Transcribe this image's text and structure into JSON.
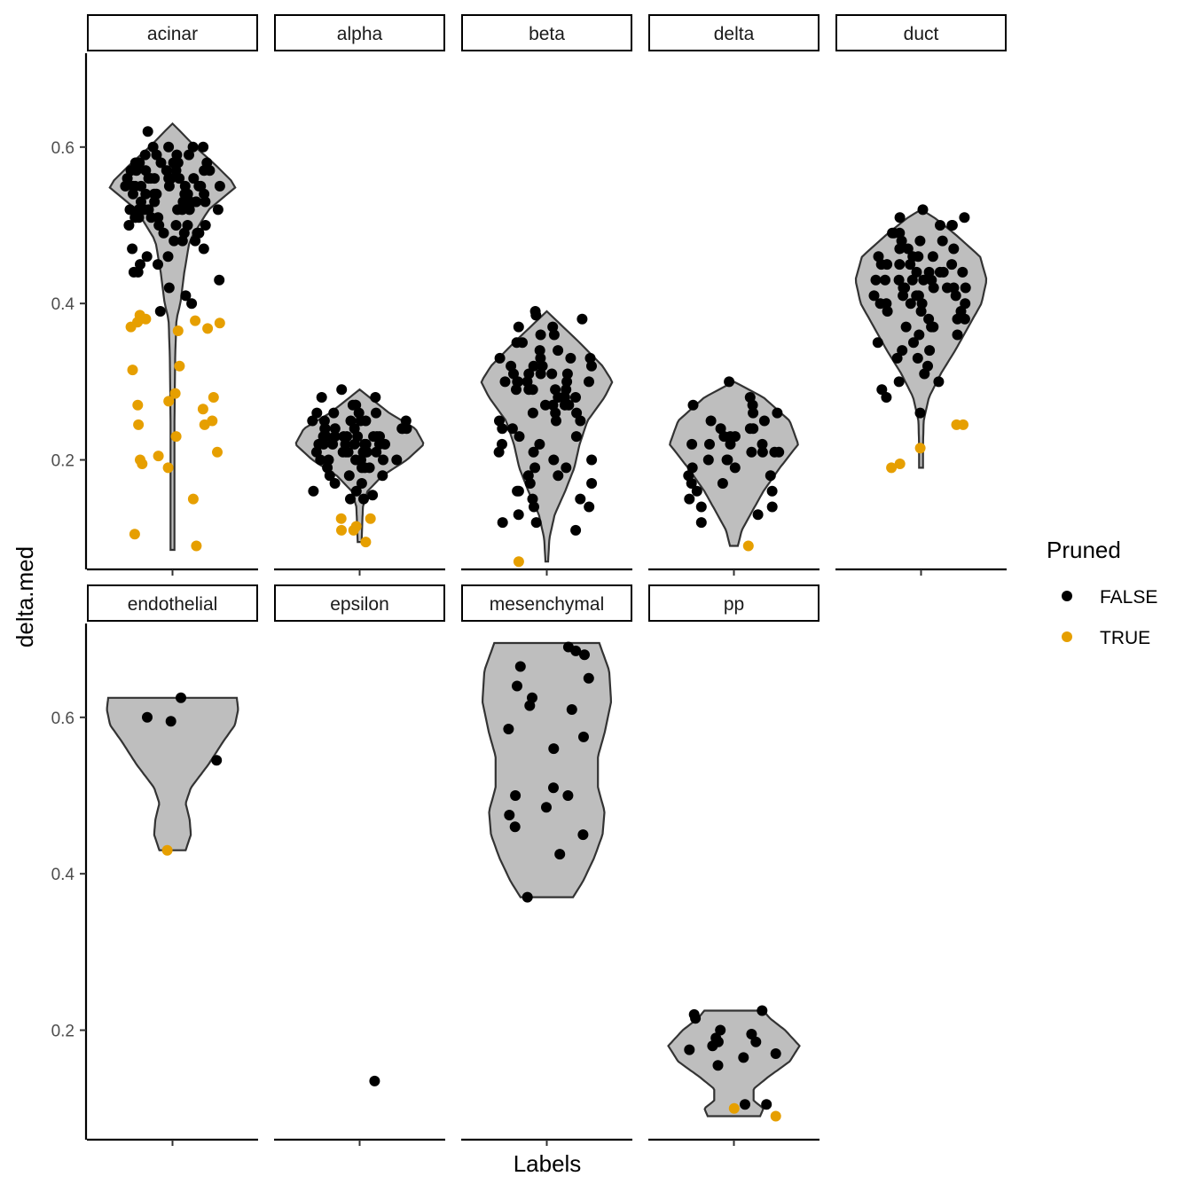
{
  "chart_data": {
    "type": "violin",
    "xlabel": "Labels",
    "ylabel": "delta.med",
    "y_ticks": [
      0.2,
      0.4,
      0.6
    ],
    "ylim": [
      0.06,
      0.72
    ],
    "legend": {
      "title": "Pruned",
      "placement": "right",
      "entries": [
        {
          "label": "FALSE",
          "color": "#000000"
        },
        {
          "label": "TRUE",
          "color": "#E69F00"
        }
      ]
    },
    "violin_fill": "#bebebe",
    "violin_stroke": "#333333",
    "panels": [
      {
        "label": "acinar",
        "violin": {
          "min": 0.085,
          "max": 0.63,
          "profile": [
            [
              0.085,
              0.03
            ],
            [
              0.15,
              0.03
            ],
            [
              0.25,
              0.03
            ],
            [
              0.33,
              0.04
            ],
            [
              0.38,
              0.06
            ],
            [
              0.4,
              0.12
            ],
            [
              0.44,
              0.18
            ],
            [
              0.48,
              0.26
            ],
            [
              0.52,
              0.55
            ],
            [
              0.55,
              0.98
            ],
            [
              0.58,
              0.62
            ],
            [
              0.6,
              0.35
            ],
            [
              0.62,
              0.12
            ],
            [
              0.63,
              0.0
            ]
          ]
        },
        "false_values": [
          0.62,
          0.6,
          0.6,
          0.6,
          0.6,
          0.59,
          0.59,
          0.59,
          0.58,
          0.58,
          0.58,
          0.58,
          0.57,
          0.57,
          0.57,
          0.57,
          0.56,
          0.56,
          0.56,
          0.56,
          0.56,
          0.55,
          0.55,
          0.55,
          0.55,
          0.55,
          0.55,
          0.54,
          0.54,
          0.54,
          0.54,
          0.54,
          0.53,
          0.53,
          0.53,
          0.53,
          0.53,
          0.52,
          0.52,
          0.52,
          0.52,
          0.52,
          0.51,
          0.51,
          0.51,
          0.51,
          0.5,
          0.5,
          0.5,
          0.5,
          0.49,
          0.49,
          0.49,
          0.48,
          0.48,
          0.48,
          0.47,
          0.47,
          0.46,
          0.46,
          0.45,
          0.45,
          0.44,
          0.44,
          0.43,
          0.42,
          0.41,
          0.4,
          0.39,
          0.57,
          0.56,
          0.55,
          0.54,
          0.53,
          0.52,
          0.59,
          0.58,
          0.57,
          0.56,
          0.55,
          0.54,
          0.53,
          0.52,
          0.51,
          0.5,
          0.49,
          0.58,
          0.57,
          0.56,
          0.55,
          0.54,
          0.53,
          0.52
        ],
        "true_values": [
          0.385,
          0.38,
          0.38,
          0.378,
          0.376,
          0.375,
          0.37,
          0.368,
          0.365,
          0.32,
          0.315,
          0.285,
          0.28,
          0.275,
          0.27,
          0.265,
          0.25,
          0.245,
          0.245,
          0.23,
          0.21,
          0.205,
          0.2,
          0.195,
          0.19,
          0.15,
          0.105,
          0.09
        ]
      },
      {
        "label": "alpha",
        "violin": {
          "min": 0.095,
          "max": 0.29,
          "profile": [
            [
              0.095,
              0.03
            ],
            [
              0.12,
              0.04
            ],
            [
              0.14,
              0.05
            ],
            [
              0.16,
              0.12
            ],
            [
              0.18,
              0.35
            ],
            [
              0.2,
              0.72
            ],
            [
              0.22,
              0.98
            ],
            [
              0.24,
              0.85
            ],
            [
              0.26,
              0.45
            ],
            [
              0.28,
              0.15
            ],
            [
              0.29,
              0.0
            ]
          ]
        },
        "false_values": [
          0.29,
          0.28,
          0.28,
          0.27,
          0.27,
          0.27,
          0.26,
          0.26,
          0.26,
          0.26,
          0.25,
          0.25,
          0.25,
          0.25,
          0.25,
          0.24,
          0.24,
          0.24,
          0.24,
          0.24,
          0.24,
          0.23,
          0.23,
          0.23,
          0.23,
          0.23,
          0.23,
          0.23,
          0.22,
          0.22,
          0.22,
          0.22,
          0.22,
          0.22,
          0.22,
          0.21,
          0.21,
          0.21,
          0.21,
          0.21,
          0.21,
          0.2,
          0.2,
          0.2,
          0.2,
          0.2,
          0.19,
          0.19,
          0.19,
          0.19,
          0.18,
          0.18,
          0.18,
          0.17,
          0.17,
          0.16,
          0.16,
          0.155,
          0.15,
          0.15,
          0.22,
          0.23,
          0.21,
          0.24,
          0.2,
          0.25,
          0.22,
          0.23,
          0.21
        ],
        "true_values": [
          0.125,
          0.125,
          0.115,
          0.11,
          0.11,
          0.095
        ]
      },
      {
        "label": "beta",
        "violin": {
          "min": 0.07,
          "max": 0.39,
          "profile": [
            [
              0.07,
              0.02
            ],
            [
              0.1,
              0.04
            ],
            [
              0.13,
              0.12
            ],
            [
              0.16,
              0.28
            ],
            [
              0.19,
              0.42
            ],
            [
              0.22,
              0.5
            ],
            [
              0.25,
              0.62
            ],
            [
              0.28,
              0.88
            ],
            [
              0.3,
              1.0
            ],
            [
              0.32,
              0.85
            ],
            [
              0.35,
              0.5
            ],
            [
              0.37,
              0.25
            ],
            [
              0.39,
              0.0
            ]
          ]
        },
        "false_values": [
          0.39,
          0.385,
          0.38,
          0.37,
          0.37,
          0.36,
          0.36,
          0.35,
          0.35,
          0.34,
          0.34,
          0.33,
          0.33,
          0.33,
          0.32,
          0.32,
          0.32,
          0.31,
          0.31,
          0.31,
          0.3,
          0.3,
          0.3,
          0.3,
          0.29,
          0.29,
          0.29,
          0.29,
          0.28,
          0.28,
          0.28,
          0.27,
          0.27,
          0.27,
          0.26,
          0.26,
          0.26,
          0.25,
          0.25,
          0.25,
          0.24,
          0.24,
          0.23,
          0.23,
          0.22,
          0.22,
          0.21,
          0.21,
          0.2,
          0.2,
          0.19,
          0.19,
          0.18,
          0.18,
          0.17,
          0.17,
          0.16,
          0.16,
          0.15,
          0.15,
          0.14,
          0.14,
          0.13,
          0.12,
          0.12,
          0.11,
          0.3,
          0.31,
          0.29,
          0.28,
          0.32,
          0.3,
          0.27,
          0.33,
          0.31
        ],
        "true_values": [
          0.07
        ]
      },
      {
        "label": "delta",
        "violin": {
          "min": 0.09,
          "max": 0.3,
          "profile": [
            [
              0.09,
              0.06
            ],
            [
              0.11,
              0.12
            ],
            [
              0.13,
              0.25
            ],
            [
              0.16,
              0.45
            ],
            [
              0.19,
              0.7
            ],
            [
              0.22,
              0.98
            ],
            [
              0.25,
              0.85
            ],
            [
              0.28,
              0.45
            ],
            [
              0.3,
              0.0
            ]
          ]
        },
        "false_values": [
          0.3,
          0.28,
          0.27,
          0.27,
          0.26,
          0.26,
          0.25,
          0.25,
          0.24,
          0.24,
          0.24,
          0.23,
          0.23,
          0.23,
          0.22,
          0.22,
          0.22,
          0.21,
          0.21,
          0.21,
          0.2,
          0.2,
          0.19,
          0.19,
          0.18,
          0.18,
          0.17,
          0.17,
          0.16,
          0.16,
          0.15,
          0.14,
          0.14,
          0.13,
          0.12,
          0.22,
          0.21,
          0.2
        ],
        "true_values": [
          0.09
        ]
      },
      {
        "label": "duct",
        "violin": {
          "min": 0.19,
          "max": 0.52,
          "profile": [
            [
              0.19,
              0.03
            ],
            [
              0.22,
              0.03
            ],
            [
              0.25,
              0.04
            ],
            [
              0.28,
              0.12
            ],
            [
              0.31,
              0.3
            ],
            [
              0.34,
              0.52
            ],
            [
              0.37,
              0.72
            ],
            [
              0.4,
              0.92
            ],
            [
              0.43,
              1.0
            ],
            [
              0.46,
              0.9
            ],
            [
              0.49,
              0.5
            ],
            [
              0.51,
              0.2
            ],
            [
              0.52,
              0.0
            ]
          ]
        },
        "false_values": [
          0.52,
          0.51,
          0.51,
          0.5,
          0.5,
          0.5,
          0.49,
          0.49,
          0.49,
          0.48,
          0.48,
          0.48,
          0.47,
          0.47,
          0.47,
          0.46,
          0.46,
          0.46,
          0.46,
          0.45,
          0.45,
          0.45,
          0.45,
          0.44,
          0.44,
          0.44,
          0.44,
          0.43,
          0.43,
          0.43,
          0.43,
          0.42,
          0.42,
          0.42,
          0.42,
          0.41,
          0.41,
          0.41,
          0.41,
          0.4,
          0.4,
          0.4,
          0.4,
          0.39,
          0.39,
          0.39,
          0.38,
          0.38,
          0.38,
          0.37,
          0.37,
          0.37,
          0.36,
          0.36,
          0.35,
          0.35,
          0.34,
          0.34,
          0.33,
          0.33,
          0.32,
          0.31,
          0.3,
          0.3,
          0.29,
          0.28,
          0.26,
          0.44,
          0.43,
          0.42,
          0.41,
          0.4,
          0.45,
          0.43,
          0.42
        ],
        "true_values": [
          0.245,
          0.245,
          0.215,
          0.195,
          0.19
        ]
      },
      {
        "label": "endothelial",
        "violin": {
          "min": 0.43,
          "max": 0.625,
          "profile": [
            [
              0.43,
              0.2
            ],
            [
              0.45,
              0.28
            ],
            [
              0.47,
              0.26
            ],
            [
              0.49,
              0.2
            ],
            [
              0.51,
              0.28
            ],
            [
              0.54,
              0.55
            ],
            [
              0.57,
              0.78
            ],
            [
              0.59,
              0.95
            ],
            [
              0.61,
              1.0
            ],
            [
              0.625,
              0.98
            ]
          ]
        },
        "false_values": [
          0.625,
          0.6,
          0.595,
          0.545
        ],
        "true_values": [
          0.43
        ]
      },
      {
        "label": "epsilon",
        "violin": null,
        "false_values": [
          0.135
        ],
        "true_values": []
      },
      {
        "label": "mesenchymal",
        "violin": {
          "min": 0.37,
          "max": 0.695,
          "profile": [
            [
              0.37,
              0.4
            ],
            [
              0.39,
              0.55
            ],
            [
              0.42,
              0.72
            ],
            [
              0.45,
              0.85
            ],
            [
              0.48,
              0.88
            ],
            [
              0.51,
              0.78
            ],
            [
              0.55,
              0.78
            ],
            [
              0.58,
              0.88
            ],
            [
              0.62,
              0.98
            ],
            [
              0.66,
              0.95
            ],
            [
              0.695,
              0.8
            ]
          ]
        },
        "false_values": [
          0.69,
          0.685,
          0.68,
          0.665,
          0.65,
          0.64,
          0.625,
          0.615,
          0.61,
          0.585,
          0.575,
          0.56,
          0.51,
          0.5,
          0.5,
          0.485,
          0.475,
          0.46,
          0.45,
          0.425,
          0.37
        ],
        "true_values": []
      },
      {
        "label": "pp",
        "violin": {
          "min": 0.09,
          "max": 0.225,
          "profile": [
            [
              0.09,
              0.4
            ],
            [
              0.1,
              0.45
            ],
            [
              0.11,
              0.3
            ],
            [
              0.125,
              0.3
            ],
            [
              0.14,
              0.52
            ],
            [
              0.16,
              0.85
            ],
            [
              0.18,
              1.0
            ],
            [
              0.2,
              0.78
            ],
            [
              0.215,
              0.55
            ],
            [
              0.225,
              0.45
            ]
          ]
        },
        "false_values": [
          0.225,
          0.22,
          0.215,
          0.2,
          0.195,
          0.19,
          0.185,
          0.185,
          0.18,
          0.175,
          0.17,
          0.165,
          0.155,
          0.105,
          0.105
        ],
        "true_values": [
          0.1,
          0.09
        ]
      }
    ]
  }
}
